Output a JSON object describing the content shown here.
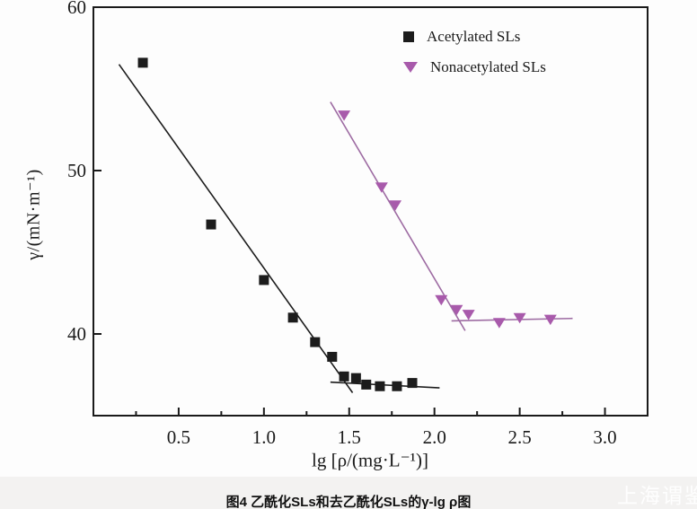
{
  "legend": {
    "items": [
      {
        "label": "Acetylated SLs",
        "marker": "square",
        "color": "#1c1c1c"
      },
      {
        "label": "Nonacetylated SLs",
        "marker": "triangle-down",
        "color": "#a85aab"
      }
    ]
  },
  "chart_data": {
    "type": "scatter",
    "title": "",
    "xlabel": "lg [ρ/(mg·L⁻¹)]",
    "ylabel": "γ/(mN·m⁻¹)",
    "xlim": [
      0,
      3.25
    ],
    "ylim": [
      35,
      60
    ],
    "grid": false,
    "legend_position": "upper-right-inside",
    "axis_color": "#1a1a1a",
    "x_major_ticks": [
      0.5,
      1.0,
      1.5,
      2.0,
      2.5,
      3.0
    ],
    "x_tick_labels": [
      "0.5",
      "1.0",
      "1.5",
      "2.0",
      "2.5",
      "3.0"
    ],
    "x_minor_ticks": [
      0.25,
      0.75,
      1.25,
      1.75,
      2.25,
      2.75
    ],
    "y_major_ticks": [
      40,
      50,
      60
    ],
    "y_tick_labels": [
      "40",
      "50",
      "60"
    ],
    "series": [
      {
        "name": "Acetylated SLs",
        "marker": "square",
        "color": "#1c1c1c",
        "points": [
          [
            0.29,
            56.6
          ],
          [
            0.69,
            46.7
          ],
          [
            1.0,
            43.3
          ],
          [
            1.17,
            41.0
          ],
          [
            1.3,
            39.5
          ],
          [
            1.4,
            38.6
          ],
          [
            1.47,
            37.4
          ],
          [
            1.54,
            37.3
          ],
          [
            1.6,
            36.9
          ],
          [
            1.68,
            36.8
          ],
          [
            1.78,
            36.8
          ],
          [
            1.87,
            37.0
          ]
        ]
      },
      {
        "name": "Nonacetylated SLs",
        "marker": "triangle-down",
        "color": "#a85aab",
        "points": [
          [
            1.47,
            53.4
          ],
          [
            1.69,
            49.0
          ],
          [
            1.77,
            47.9
          ],
          [
            2.04,
            42.1
          ],
          [
            2.13,
            41.5
          ],
          [
            2.2,
            41.2
          ],
          [
            2.38,
            40.7
          ],
          [
            2.5,
            41.0
          ],
          [
            2.68,
            40.9
          ]
        ]
      }
    ],
    "fit_lines": [
      {
        "series": "Acetylated SLs",
        "color": "#1c1c1c",
        "from": [
          0.15,
          56.5
        ],
        "to": [
          1.52,
          36.4
        ]
      },
      {
        "series": "Acetylated SLs",
        "color": "#1c1c1c",
        "from": [
          1.39,
          37.05
        ],
        "to": [
          2.03,
          36.7
        ]
      },
      {
        "series": "Nonacetylated SLs",
        "color": "#9d6ba2",
        "from": [
          1.39,
          54.2
        ],
        "to": [
          2.18,
          40.2
        ]
      },
      {
        "series": "Nonacetylated SLs",
        "color": "#9d6ba2",
        "from": [
          2.1,
          40.8
        ],
        "to": [
          2.81,
          40.95
        ]
      }
    ]
  },
  "caption": "图4  乙酰化SLs和去乙酰化SLs的γ-lg ρ图",
  "watermark": "上海谓鉴"
}
